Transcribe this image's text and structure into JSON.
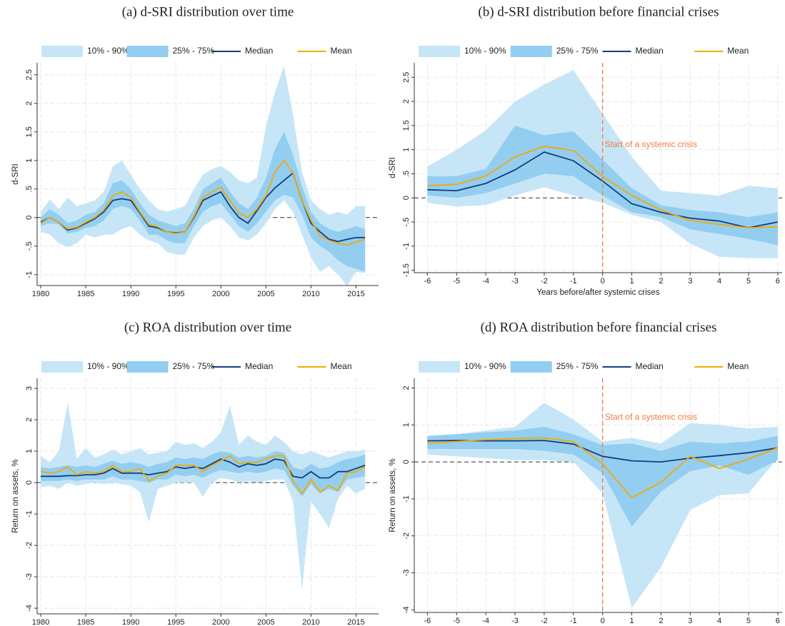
{
  "chart_data": [
    {
      "type": "line",
      "title": "(a) d-SRI distribution over time",
      "ylabel": "d-SRI",
      "x": [
        1980,
        1981,
        1982,
        1983,
        1984,
        1985,
        1986,
        1987,
        1988,
        1989,
        1990,
        1991,
        1992,
        1993,
        1994,
        1995,
        1996,
        1997,
        1998,
        1999,
        2000,
        2001,
        2002,
        2003,
        2004,
        2005,
        2006,
        2007,
        2008,
        2009,
        2010,
        2011,
        2012,
        2013,
        2014,
        2015,
        2016
      ],
      "xlim": [
        1979.6,
        2017.5
      ],
      "xticks": [
        1980,
        1985,
        1990,
        1995,
        2000,
        2005,
        2010,
        2015
      ],
      "ylim": [
        -1.19,
        2.71
      ],
      "yticks": [
        -1,
        {
          "value": -0.5,
          "label": "-.5"
        },
        0,
        {
          "value": 0.5,
          "label": ".5"
        },
        1,
        1.5,
        2,
        2.5
      ],
      "hline": 0,
      "grid": true,
      "legend": "top",
      "series": [
        {
          "name": "10% - 90%",
          "color": "#c6e6f8",
          "lower": [
            -0.25,
            -0.3,
            -0.45,
            -0.52,
            -0.45,
            -0.3,
            -0.35,
            -0.3,
            -0.3,
            -0.2,
            -0.15,
            -0.3,
            -0.4,
            -0.45,
            -0.6,
            -0.65,
            -0.65,
            -0.35,
            -0.15,
            -0.05,
            0.0,
            -0.15,
            -0.35,
            -0.4,
            -0.3,
            -0.1,
            0.15,
            0.3,
            0.1,
            -0.3,
            -0.7,
            -0.95,
            -0.85,
            -1.0,
            -1.2,
            -0.95,
            -0.97
          ],
          "upper": [
            0.1,
            0.32,
            0.15,
            0.35,
            0.2,
            0.25,
            0.3,
            0.45,
            0.9,
            1.0,
            0.75,
            0.5,
            0.3,
            0.15,
            0.1,
            0.15,
            0.2,
            0.5,
            0.75,
            0.85,
            0.9,
            0.8,
            0.65,
            0.6,
            0.7,
            1.6,
            2.2,
            2.65,
            1.8,
            0.8,
            0.3,
            0.15,
            0.05,
            0.1,
            0.05,
            0.2,
            0.2
          ]
        },
        {
          "name": "25% - 75%",
          "color": "#93cef1",
          "lower": [
            -0.15,
            -0.1,
            -0.12,
            -0.28,
            -0.25,
            -0.18,
            -0.15,
            -0.05,
            0.15,
            0.2,
            0.15,
            -0.05,
            -0.3,
            -0.3,
            -0.4,
            -0.45,
            -0.45,
            -0.15,
            0.1,
            0.2,
            0.25,
            0.05,
            -0.15,
            -0.25,
            -0.1,
            0.1,
            0.3,
            0.4,
            0.35,
            0.05,
            -0.35,
            -0.5,
            -0.6,
            -0.75,
            -0.85,
            -0.9,
            -0.95
          ],
          "upper": [
            0.0,
            0.15,
            0.05,
            -0.1,
            -0.05,
            0.05,
            0.1,
            0.25,
            0.6,
            0.65,
            0.5,
            0.25,
            0.05,
            -0.05,
            -0.1,
            -0.15,
            -0.1,
            0.15,
            0.5,
            0.6,
            0.7,
            0.45,
            0.25,
            0.15,
            0.35,
            0.7,
            1.2,
            1.5,
            1.1,
            0.55,
            0.1,
            -0.1,
            -0.2,
            -0.25,
            -0.2,
            -0.15,
            -0.2
          ]
        },
        {
          "name": "Median",
          "color": "#143c7c",
          "values": [
            -0.08,
            0.0,
            -0.08,
            -0.22,
            -0.18,
            -0.1,
            -0.02,
            0.1,
            0.3,
            0.33,
            0.3,
            0.08,
            -0.15,
            -0.18,
            -0.25,
            -0.27,
            -0.25,
            0.0,
            0.3,
            0.38,
            0.45,
            0.2,
            0.0,
            -0.1,
            0.12,
            0.35,
            0.52,
            0.65,
            0.78,
            0.3,
            -0.1,
            -0.25,
            -0.38,
            -0.42,
            -0.38,
            -0.35,
            -0.35
          ]
        },
        {
          "name": "Mean",
          "color": "#f2a900",
          "values": [
            -0.1,
            0.0,
            -0.08,
            -0.2,
            -0.17,
            -0.08,
            0.0,
            0.13,
            0.38,
            0.45,
            0.35,
            0.1,
            -0.12,
            -0.16,
            -0.25,
            -0.28,
            -0.25,
            0.02,
            0.35,
            0.45,
            0.53,
            0.3,
            0.08,
            0.0,
            0.15,
            0.38,
            0.8,
            1.0,
            0.78,
            0.3,
            -0.05,
            -0.32,
            -0.4,
            -0.45,
            -0.48,
            -0.43,
            -0.38
          ]
        }
      ]
    },
    {
      "type": "line",
      "title": "(b) d-SRI distribution before financial crises",
      "ylabel": "d-SRI",
      "xlabel": "Years before/after systemic crises",
      "x": [
        -6,
        -5,
        -4,
        -3,
        -2,
        -1,
        0,
        1,
        2,
        3,
        4,
        5,
        6
      ],
      "xlim": [
        -6.45,
        6.15
      ],
      "xticks": [
        -6,
        -5,
        -4,
        -3,
        -2,
        -1,
        0,
        1,
        2,
        3,
        4,
        5,
        6
      ],
      "ylim": [
        -1.55,
        2.8
      ],
      "yticks": [
        -1.5,
        -1,
        {
          "value": -0.5,
          "label": "-.5"
        },
        0,
        {
          "value": 0.5,
          "label": ".5"
        },
        1,
        1.5,
        2,
        2.5
      ],
      "hline": 0,
      "crisis_x": 0,
      "crisis_color": "#f07a3c",
      "annotation": "Start of a systemic crisis",
      "grid": true,
      "legend": "top",
      "series": [
        {
          "name": "10% - 90%",
          "color": "#c6e6f8",
          "lower": [
            -0.1,
            -0.18,
            -0.15,
            0.05,
            0.22,
            0.05,
            -0.1,
            -0.35,
            -0.5,
            -0.95,
            -1.22,
            -1.25,
            -1.25
          ],
          "upper": [
            0.65,
            1.0,
            1.4,
            2.0,
            2.35,
            2.65,
            1.75,
            0.85,
            0.15,
            0.1,
            0.05,
            0.25,
            0.2
          ]
        },
        {
          "name": "25% - 75%",
          "color": "#93cef1",
          "lower": [
            0.05,
            0.0,
            0.1,
            0.3,
            0.5,
            0.45,
            0.05,
            -0.3,
            -0.4,
            -0.65,
            -0.75,
            -0.85,
            -0.98
          ],
          "upper": [
            0.45,
            0.45,
            0.6,
            1.5,
            1.3,
            1.38,
            0.8,
            0.2,
            -0.15,
            -0.25,
            -0.3,
            -0.4,
            -0.3
          ]
        },
        {
          "name": "Median",
          "color": "#143c7c",
          "values": [
            0.17,
            0.15,
            0.3,
            0.58,
            0.95,
            0.77,
            0.35,
            -0.12,
            -0.3,
            -0.42,
            -0.48,
            -0.62,
            -0.5
          ]
        },
        {
          "name": "Mean",
          "color": "#f2a900",
          "values": [
            0.25,
            0.28,
            0.45,
            0.85,
            1.07,
            0.98,
            0.45,
            0.05,
            -0.25,
            -0.47,
            -0.55,
            -0.62,
            -0.6
          ]
        }
      ]
    },
    {
      "type": "line",
      "title": "(c) ROA distribution over time",
      "ylabel": "Return on assets, %",
      "x": [
        1980,
        1981,
        1982,
        1983,
        1984,
        1985,
        1986,
        1987,
        1988,
        1989,
        1990,
        1991,
        1992,
        1993,
        1994,
        1995,
        1996,
        1997,
        1998,
        1999,
        2000,
        2001,
        2002,
        2003,
        2004,
        2005,
        2006,
        2007,
        2008,
        2009,
        2010,
        2011,
        2012,
        2013,
        2014,
        2015,
        2016
      ],
      "xlim": [
        1979.6,
        2017.5
      ],
      "xticks": [
        1980,
        1985,
        1990,
        1995,
        2000,
        2005,
        2010,
        2015
      ],
      "ylim": [
        -4.18,
        3.32
      ],
      "yticks": [
        -4,
        -3,
        -2,
        -1,
        0,
        1,
        2,
        3
      ],
      "hline": 0,
      "grid": true,
      "legend": "top",
      "series": [
        {
          "name": "10% - 90%",
          "color": "#c6e6f8",
          "lower": [
            -0.15,
            -0.1,
            -0.2,
            0.0,
            -0.1,
            -0.05,
            0.0,
            -0.05,
            0.0,
            -0.05,
            -0.1,
            -0.3,
            -1.25,
            -0.2,
            -0.1,
            0.0,
            0.0,
            0.0,
            -0.45,
            0.0,
            0.15,
            0.1,
            0.0,
            0.05,
            0.0,
            0.05,
            0.1,
            0.1,
            -0.6,
            -3.4,
            -0.6,
            -1.0,
            -1.45,
            -0.5,
            -0.1,
            -0.35,
            -0.2
          ],
          "upper": [
            0.85,
            0.65,
            1.0,
            2.55,
            0.75,
            1.1,
            0.8,
            0.9,
            1.05,
            0.9,
            1.0,
            1.1,
            0.9,
            0.95,
            1.0,
            1.3,
            1.2,
            1.25,
            1.1,
            1.3,
            1.6,
            2.45,
            1.2,
            1.5,
            1.3,
            1.2,
            1.5,
            1.3,
            1.0,
            0.9,
            1.0,
            0.9,
            0.8,
            0.9,
            1.0,
            1.0,
            1.05
          ]
        },
        {
          "name": "25% - 75%",
          "color": "#93cef1",
          "lower": [
            0.05,
            0.05,
            0.05,
            0.1,
            0.05,
            0.1,
            0.1,
            0.1,
            0.2,
            0.1,
            0.1,
            0.05,
            0.0,
            0.1,
            0.1,
            0.25,
            0.2,
            0.25,
            0.15,
            0.3,
            0.4,
            0.35,
            0.3,
            0.35,
            0.3,
            0.35,
            0.45,
            0.4,
            -0.1,
            -0.45,
            -0.05,
            -0.35,
            -0.2,
            -0.3,
            0.1,
            0.15,
            0.2
          ],
          "upper": [
            0.5,
            0.45,
            0.5,
            0.55,
            0.5,
            0.55,
            0.5,
            0.6,
            0.7,
            0.6,
            0.65,
            0.6,
            0.5,
            0.6,
            0.65,
            0.8,
            0.75,
            0.8,
            0.75,
            0.9,
            1.0,
            0.95,
            0.8,
            0.85,
            0.8,
            0.85,
            1.0,
            0.95,
            0.5,
            0.4,
            0.6,
            0.45,
            0.5,
            0.65,
            0.75,
            0.8,
            0.9
          ]
        },
        {
          "name": "Median",
          "color": "#143c7c",
          "values": [
            0.2,
            0.2,
            0.2,
            0.22,
            0.22,
            0.25,
            0.25,
            0.3,
            0.45,
            0.3,
            0.3,
            0.3,
            0.25,
            0.3,
            0.35,
            0.5,
            0.45,
            0.5,
            0.45,
            0.6,
            0.75,
            0.65,
            0.5,
            0.6,
            0.55,
            0.6,
            0.75,
            0.7,
            0.2,
            0.15,
            0.35,
            0.15,
            0.15,
            0.35,
            0.35,
            0.45,
            0.55
          ]
        },
        {
          "name": "Mean",
          "color": "#f2a900",
          "values": [
            0.35,
            0.3,
            0.35,
            0.5,
            0.25,
            0.35,
            0.3,
            0.35,
            0.55,
            0.35,
            0.35,
            0.45,
            0.05,
            0.2,
            0.3,
            0.55,
            0.55,
            0.55,
            0.35,
            0.55,
            0.7,
            0.85,
            0.6,
            0.65,
            0.65,
            0.75,
            0.85,
            0.85,
            0.05,
            -0.35,
            0.1,
            -0.3,
            -0.1,
            -0.25,
            0.3,
            0.35,
            0.5
          ]
        }
      ]
    },
    {
      "type": "line",
      "title": "(d) ROA distribution before financial crises",
      "ylabel": "Return on assets, %",
      "xlabel": "Years before/after systemic crises",
      "x": [
        -6,
        -5,
        -4,
        -3,
        -2,
        -1,
        0,
        1,
        2,
        3,
        4,
        5,
        6
      ],
      "xlim": [
        -6.45,
        6.15
      ],
      "xticks": [
        -6,
        -5,
        -4,
        -3,
        -2,
        -1,
        0,
        1,
        2,
        3,
        4,
        5,
        6
      ],
      "ylim": [
        -4.07,
        2.26
      ],
      "yticks": [
        -4,
        -3,
        -2,
        -1,
        0,
        1,
        2
      ],
      "hline": 0,
      "crisis_x": 0,
      "crisis_color": "#f07a3c",
      "annotation": "Start of a systemic crisis",
      "grid": true,
      "legend": "top",
      "series": [
        {
          "name": "10% - 90%",
          "color": "#c6e6f8",
          "lower": [
            0.2,
            0.15,
            0.1,
            0.05,
            0.05,
            0.0,
            -0.85,
            -3.95,
            -2.85,
            -1.3,
            -0.9,
            -0.85,
            0.1
          ],
          "upper": [
            0.65,
            0.75,
            0.85,
            0.95,
            1.6,
            1.15,
            0.55,
            0.65,
            0.5,
            1.05,
            1.0,
            0.9,
            0.95
          ]
        },
        {
          "name": "25% - 75%",
          "color": "#93cef1",
          "lower": [
            0.35,
            0.35,
            0.35,
            0.35,
            0.3,
            0.2,
            -0.3,
            -1.75,
            -0.8,
            -0.25,
            -0.1,
            -0.35,
            0.05
          ],
          "upper": [
            0.7,
            0.75,
            0.8,
            0.85,
            0.95,
            0.75,
            0.45,
            0.5,
            0.3,
            0.55,
            0.5,
            0.55,
            0.7
          ]
        },
        {
          "name": "Median",
          "color": "#143c7c",
          "values": [
            0.57,
            0.58,
            0.57,
            0.57,
            0.58,
            0.48,
            0.15,
            0.03,
            0.0,
            0.1,
            0.17,
            0.25,
            0.38
          ]
        },
        {
          "name": "Mean",
          "color": "#f2a900",
          "values": [
            0.5,
            0.55,
            0.6,
            0.63,
            0.65,
            0.55,
            -0.05,
            -0.97,
            -0.55,
            0.15,
            -0.18,
            0.08,
            0.38
          ]
        }
      ]
    }
  ]
}
